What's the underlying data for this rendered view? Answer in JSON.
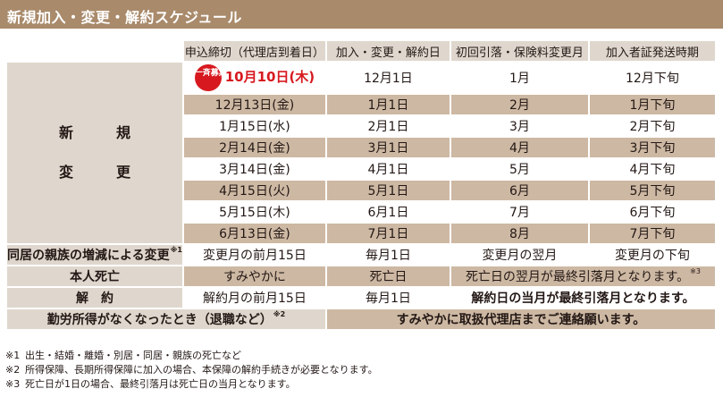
{
  "title": "新規加入・変更・解約スケジュール",
  "headers": [
    "申込締切（代理店到着日）",
    "加入・変更・解約日",
    "初回引落・保険料変更月",
    "加入者証発送時期"
  ],
  "side_label": [
    "新　規",
    "変　更"
  ],
  "badge": "一斉募集",
  "rows": [
    {
      "deadline": "10月10日(木)",
      "start": "12月1日",
      "debit": "1月",
      "cert": "12月下旬"
    },
    {
      "deadline": "12月13日(金)",
      "start": "1月1日",
      "debit": "2月",
      "cert": "1月下旬"
    },
    {
      "deadline": "1月15日(水)",
      "start": "2月1日",
      "debit": "3月",
      "cert": "2月下旬"
    },
    {
      "deadline": "2月14日(金)",
      "start": "3月1日",
      "debit": "4月",
      "cert": "3月下旬"
    },
    {
      "deadline": "3月14日(金)",
      "start": "4月1日",
      "debit": "5月",
      "cert": "4月下旬"
    },
    {
      "deadline": "4月15日(火)",
      "start": "5月1日",
      "debit": "6月",
      "cert": "5月下旬"
    },
    {
      "deadline": "5月15日(木)",
      "start": "6月1日",
      "debit": "7月",
      "cert": "6月下旬"
    },
    {
      "deadline": "6月13日(金)",
      "start": "7月1日",
      "debit": "8月",
      "cert": "7月下旬"
    }
  ],
  "family": {
    "label": "同居の親族の増減による変更",
    "sup": "※1",
    "deadline": "変更月の前月15日",
    "start": "毎月1日",
    "debit": "変更月の翌月",
    "cert": "変更月の下旬"
  },
  "death": {
    "label": "本人死亡",
    "deadline": "すみやかに",
    "start": "死亡日",
    "merged": "死亡日の翌月が最終引落月となります。",
    "sup": "※3"
  },
  "cancel": {
    "label": "解　約",
    "deadline": "解約月の前月15日",
    "start": "毎月1日",
    "merged": "解約日の当月が最終引落月となります。"
  },
  "retire": {
    "label": "勤労所得がなくなったとき（退職など）",
    "sup": "※2",
    "merged": "すみやかに取扱代理店までご連絡願います。"
  },
  "notes": [
    {
      "mark": "※1",
      "text": "出生・結婚・離婚・別居・同居・親族の死亡など"
    },
    {
      "mark": "※2",
      "text": "所得保障、長期所得保障に加入の場合、本保障の解約手続きが必要となります。"
    },
    {
      "mark": "※3",
      "text": "死亡日が1日の場合、最終引落月は死亡日の当月となります。"
    }
  ]
}
